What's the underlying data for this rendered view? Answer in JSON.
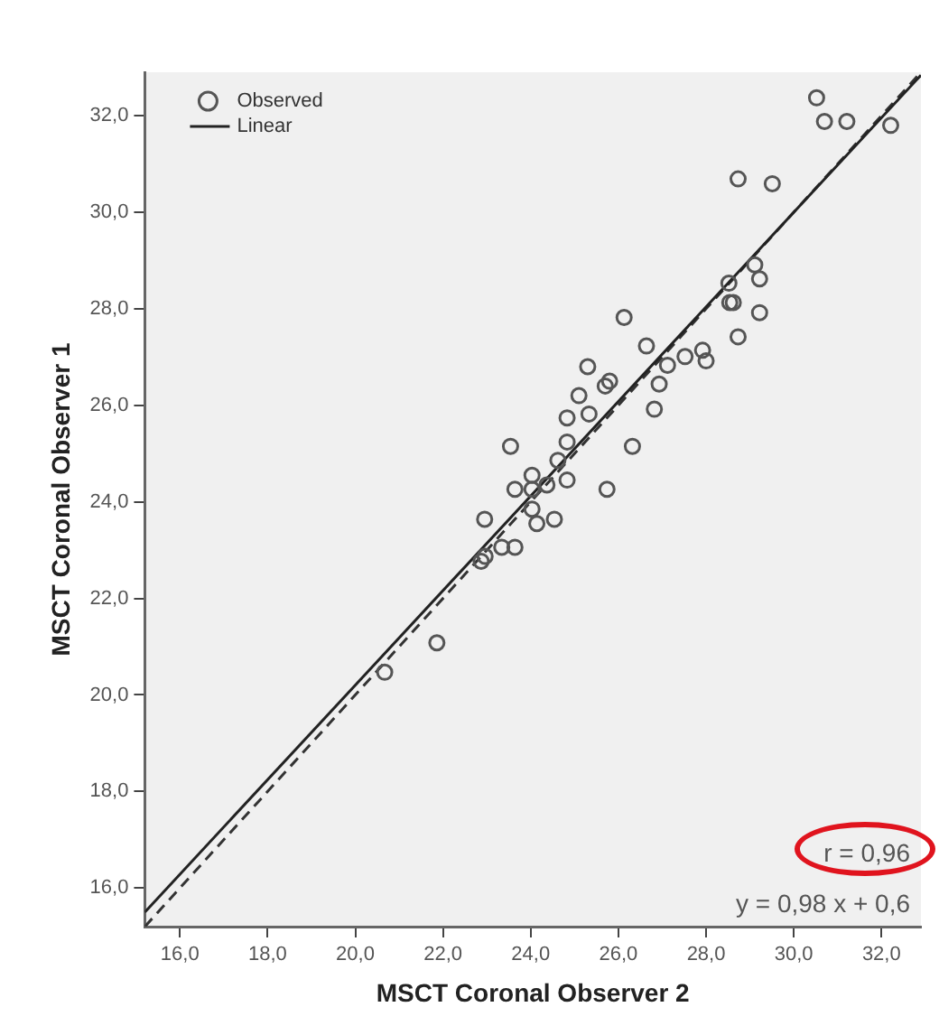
{
  "chart_data": {
    "type": "scatter",
    "xlabel": "MSCT Coronal Observer 2",
    "ylabel": "MSCT Coronal Observer 1",
    "xlim": [
      15.2,
      32.9
    ],
    "ylim": [
      15.2,
      32.9
    ],
    "xticks": [
      {
        "value": 16,
        "label": "16,0"
      },
      {
        "value": 18,
        "label": "18,0"
      },
      {
        "value": 20,
        "label": "20,0"
      },
      {
        "value": 22,
        "label": "22,0"
      },
      {
        "value": 24,
        "label": "24,0"
      },
      {
        "value": 26,
        "label": "26,0"
      },
      {
        "value": 28,
        "label": "28,0"
      },
      {
        "value": 30,
        "label": "30,0"
      },
      {
        "value": 32,
        "label": "32,0"
      }
    ],
    "yticks": [
      {
        "value": 16,
        "label": "16,0"
      },
      {
        "value": 18,
        "label": "18,0"
      },
      {
        "value": 20,
        "label": "20,0"
      },
      {
        "value": 22,
        "label": "22,0"
      },
      {
        "value": 24,
        "label": "24,0"
      },
      {
        "value": 26,
        "label": "26,0"
      },
      {
        "value": 28,
        "label": "28,0"
      },
      {
        "value": 30,
        "label": "30,0"
      },
      {
        "value": 32,
        "label": "32,0"
      }
    ],
    "grid": false,
    "legend": "top left",
    "marker": "circle",
    "series": [
      {
        "name": "Observed",
        "type": "scatter",
        "color": "#555555",
        "x": [
          20.67,
          21.86,
          22.87,
          22.96,
          22.95,
          23.34,
          23.64,
          24.03,
          24.14,
          24.54,
          23.64,
          24.03,
          24.37,
          24.83,
          25.74,
          24.03,
          24.62,
          23.54,
          24.83,
          26.32,
          24.83,
          25.33,
          25.1,
          25.3,
          25.7,
          25.8,
          26.82,
          26.93,
          27.12,
          27.52,
          27.92,
          28.0,
          26.64,
          26.13,
          28.73,
          29.22,
          28.54,
          28.62,
          28.52,
          29.22,
          29.11,
          28.73,
          29.51,
          30.52,
          30.7,
          31.21,
          32.21
        ],
        "values": [
          20.47,
          21.08,
          22.77,
          22.87,
          23.64,
          23.06,
          23.06,
          23.85,
          23.55,
          23.64,
          24.26,
          24.26,
          24.35,
          24.45,
          24.26,
          24.55,
          24.86,
          25.15,
          25.24,
          25.15,
          25.74,
          25.82,
          26.2,
          26.8,
          26.4,
          26.5,
          25.92,
          26.44,
          26.83,
          27.01,
          27.14,
          26.92,
          27.23,
          27.82,
          27.42,
          27.92,
          28.13,
          28.13,
          28.53,
          28.62,
          28.91,
          30.69,
          30.59,
          32.37,
          31.88,
          31.88,
          31.8
        ]
      },
      {
        "name": "Linear",
        "type": "line",
        "color": "#222222",
        "marker": "none",
        "line_style": "solid",
        "x": [
          15.2,
          32.9
        ],
        "values": [
          15.5,
          32.84
        ]
      },
      {
        "type": "line",
        "color": "#333333",
        "marker": "none",
        "line_style": "dashed",
        "x": [
          15.2,
          32.9
        ],
        "values": [
          15.2,
          32.9
        ]
      }
    ],
    "annotations": [
      "r = 0,96",
      "y = 0,98 x + 0,6"
    ]
  }
}
